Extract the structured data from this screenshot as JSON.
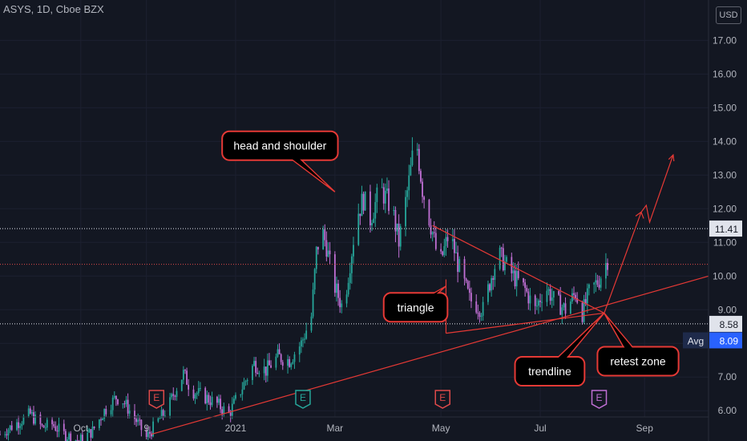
{
  "header": {
    "title": "ASYS, 1D, Cboe BZX",
    "currency": "USD"
  },
  "chart_data": {
    "type": "candlestick",
    "symbol": "ASYS",
    "y_ticks": [
      6.0,
      7.0,
      8.0,
      9.0,
      10.0,
      11.0,
      12.0,
      13.0,
      14.0,
      15.0,
      16.0,
      17.0
    ],
    "y_tick_labels": [
      "6.00",
      "7.00",
      "8.00",
      "9.00",
      "10.00",
      "11.00",
      "12.00",
      "13.00",
      "14.00",
      "15.00",
      "16.00",
      "17.00"
    ],
    "ylim": [
      5.1,
      18.2
    ],
    "x_ticks": [
      {
        "label": "Oct",
        "date": "2020-10-01"
      },
      {
        "label": "9",
        "date": "2020-11-09"
      },
      {
        "label": "2021",
        "date": "2021-01-01"
      },
      {
        "label": "Mar",
        "date": "2021-03-01"
      },
      {
        "label": "May",
        "date": "2021-05-03"
      },
      {
        "label": "Jul",
        "date": "2021-07-01"
      },
      {
        "label": "Sep",
        "date": "2021-09-01"
      }
    ],
    "x_range": [
      "2020-08-14",
      "2021-10-09"
    ],
    "horizontal_levels": [
      {
        "value": 11.41,
        "label": "11.41",
        "style": "dotted",
        "color": "#e0e3eb"
      },
      {
        "value": 8.58,
        "label": "8.58",
        "style": "dotted",
        "color": "#e0e3eb"
      },
      {
        "value": 10.35,
        "label": "",
        "style": "dotted",
        "color": "#e04a4a"
      }
    ],
    "avg_badge": {
      "label": "Avg",
      "value": "8.09",
      "at": 8.09
    },
    "price_path": [
      [
        "2020-08-14",
        5.3
      ],
      [
        "2020-08-26",
        5.7
      ],
      [
        "2020-09-01",
        5.9
      ],
      [
        "2020-09-08",
        5.5
      ],
      [
        "2020-09-14",
        5.6
      ],
      [
        "2020-09-21",
        5.3
      ],
      [
        "2020-09-30",
        5.1
      ],
      [
        "2020-10-08",
        5.4
      ],
      [
        "2020-10-15",
        6.0
      ],
      [
        "2020-10-22",
        6.4
      ],
      [
        "2020-10-26",
        6.3
      ],
      [
        "2020-11-03",
        5.7
      ],
      [
        "2020-11-09",
        5.2
      ],
      [
        "2020-11-16",
        5.7
      ],
      [
        "2020-11-22",
        6.1
      ],
      [
        "2020-11-26",
        6.6
      ],
      [
        "2020-12-01",
        7.1
      ],
      [
        "2020-12-06",
        6.6
      ],
      [
        "2020-12-14",
        6.4
      ],
      [
        "2020-12-21",
        6.2
      ],
      [
        "2020-12-28",
        5.9
      ],
      [
        "2021-01-05",
        6.7
      ],
      [
        "2021-01-12",
        7.4
      ],
      [
        "2021-01-19",
        7.2
      ],
      [
        "2021-01-26",
        7.6
      ],
      [
        "2021-02-02",
        7.5
      ],
      [
        "2021-02-09",
        8.0
      ],
      [
        "2021-02-15",
        8.8
      ],
      [
        "2021-02-18",
        10.7
      ],
      [
        "2021-02-21",
        11.4
      ],
      [
        "2021-02-24",
        10.9
      ],
      [
        "2021-02-28",
        9.8
      ],
      [
        "2021-03-06",
        9.0
      ],
      [
        "2021-03-10",
        10.4
      ],
      [
        "2021-03-14",
        11.8
      ],
      [
        "2021-03-18",
        12.3
      ],
      [
        "2021-03-22",
        11.7
      ],
      [
        "2021-03-28",
        12.6
      ],
      [
        "2021-04-04",
        12.0
      ],
      [
        "2021-04-08",
        11.0
      ],
      [
        "2021-04-14",
        12.8
      ],
      [
        "2021-04-18",
        14.2
      ],
      [
        "2021-04-22",
        12.6
      ],
      [
        "2021-04-28",
        11.3
      ],
      [
        "2021-05-02",
        10.3
      ],
      [
        "2021-05-08",
        11.3
      ],
      [
        "2021-05-14",
        10.2
      ],
      [
        "2021-05-20",
        9.3
      ],
      [
        "2021-05-28",
        9.0
      ],
      [
        "2021-06-03",
        10.2
      ],
      [
        "2021-06-07",
        10.6
      ],
      [
        "2021-06-15",
        10.0
      ],
      [
        "2021-06-22",
        9.6
      ],
      [
        "2021-06-28",
        9.0
      ],
      [
        "2021-07-04",
        9.7
      ],
      [
        "2021-07-09",
        9.3
      ],
      [
        "2021-07-16",
        9.0
      ],
      [
        "2021-07-22",
        9.5
      ],
      [
        "2021-07-26",
        8.9
      ],
      [
        "2021-07-30",
        9.5
      ],
      [
        "2021-08-05",
        9.9
      ],
      [
        "2021-08-10",
        10.5
      ]
    ],
    "drawings": [
      {
        "kind": "trendline",
        "from": [
          "2020-11-12",
          5.3
        ],
        "to": [
          "2021-10-09",
          10.0
        ]
      },
      {
        "kind": "triangle-upper",
        "from": [
          "2021-04-28",
          11.5
        ],
        "to": [
          "2021-08-08",
          8.9
        ]
      },
      {
        "kind": "triangle-lower",
        "from": [
          "2021-05-06",
          8.3
        ],
        "to": [
          "2021-08-08",
          8.9
        ]
      },
      {
        "kind": "triangle-left",
        "from": [
          "2021-05-06",
          8.3
        ],
        "to": [
          "2021-05-06",
          9.9
        ]
      },
      {
        "kind": "projection",
        "points": [
          [
            "2021-08-08",
            8.9
          ],
          [
            "2021-08-30",
            11.9
          ],
          [
            "2021-09-02",
            12.1
          ],
          [
            "2021-09-04",
            11.6
          ],
          [
            "2021-09-18",
            13.6
          ]
        ]
      }
    ],
    "annotations": [
      {
        "text": "head and shoulder",
        "box_at": [
          "2020-12-24",
          14.3
        ],
        "pointer": [
          "2021-03-01",
          12.5
        ]
      },
      {
        "text": "triangle",
        "box_at": [
          "2021-03-30",
          9.5
        ],
        "pointer": [
          "2021-05-06",
          9.7
        ]
      },
      {
        "text": "trendline",
        "box_at": [
          "2021-06-16",
          7.6
        ],
        "pointer": [
          "2021-08-08",
          8.9
        ]
      },
      {
        "text": "retest zone",
        "box_at": [
          "2021-08-04",
          7.9
        ],
        "pointer": [
          "2021-08-08",
          8.9
        ]
      }
    ],
    "earnings_markers": [
      {
        "label": "E",
        "date": "2020-11-15",
        "color": "#e04a4a"
      },
      {
        "label": "E",
        "date": "2021-02-10",
        "color": "#26a69a"
      },
      {
        "label": "E",
        "date": "2021-05-04",
        "color": "#e04a4a"
      },
      {
        "label": "E",
        "date": "2021-08-05",
        "color": "#c06fd4"
      }
    ]
  }
}
